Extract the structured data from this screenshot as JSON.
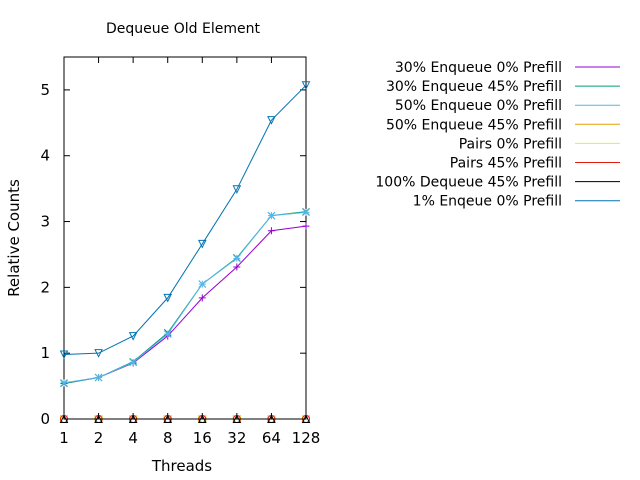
{
  "chart_data": {
    "type": "line",
    "title": "Dequeue Old Element",
    "xlabel": "Threads",
    "ylabel": "Relative Counts",
    "x_scale": "log2",
    "categories": [
      "1",
      "2",
      "4",
      "8",
      "16",
      "32",
      "64",
      "128"
    ],
    "ylim": [
      0,
      5.5
    ],
    "yticks": [
      "0",
      "1",
      "2",
      "3",
      "4",
      "5"
    ],
    "grid": false,
    "legend_position": "right",
    "series": [
      {
        "name": "30% Enqueue 0% Prefill",
        "color": "#9400d3",
        "marker": "plus",
        "values": [
          0.54,
          0.63,
          0.85,
          1.26,
          1.84,
          2.31,
          2.86,
          2.93
        ]
      },
      {
        "name": "30% Enqueue 45% Prefill",
        "color": "#009e73",
        "marker": "x",
        "values": [
          0.54,
          0.63,
          0.87,
          1.31,
          2.05,
          2.45,
          3.09,
          3.15
        ]
      },
      {
        "name": "50% Enqueue 0% Prefill",
        "color": "#56b4e9",
        "marker": "star",
        "values": [
          0.55,
          0.63,
          0.86,
          1.29,
          2.05,
          2.44,
          3.09,
          3.14
        ]
      },
      {
        "name": "50% Enqueue 45% Prefill",
        "color": "#e69f00",
        "marker": "square",
        "values": [
          0,
          0,
          0,
          0,
          0,
          0,
          0,
          0
        ]
      },
      {
        "name": "Pairs 0% Prefill",
        "color": "#f0e442",
        "marker": "square",
        "values": [
          0,
          0,
          0,
          0,
          0,
          0,
          0,
          0
        ]
      },
      {
        "name": "Pairs 45% Prefill",
        "color": "#e51e10",
        "marker": "circle",
        "values": [
          0,
          0,
          0,
          0,
          0,
          0,
          0,
          0
        ]
      },
      {
        "name": "100% Dequeue 45% Prefill",
        "color": "#000000",
        "marker": "triangle",
        "values": [
          0,
          0,
          0,
          0,
          0,
          0,
          0,
          0
        ]
      },
      {
        "name": "1% Enqeue 0% Prefill",
        "color": "#0072b2",
        "marker": "triangle-down",
        "values": [
          0.98,
          1.0,
          1.26,
          1.84,
          2.66,
          3.49,
          4.54,
          5.07
        ]
      }
    ]
  }
}
